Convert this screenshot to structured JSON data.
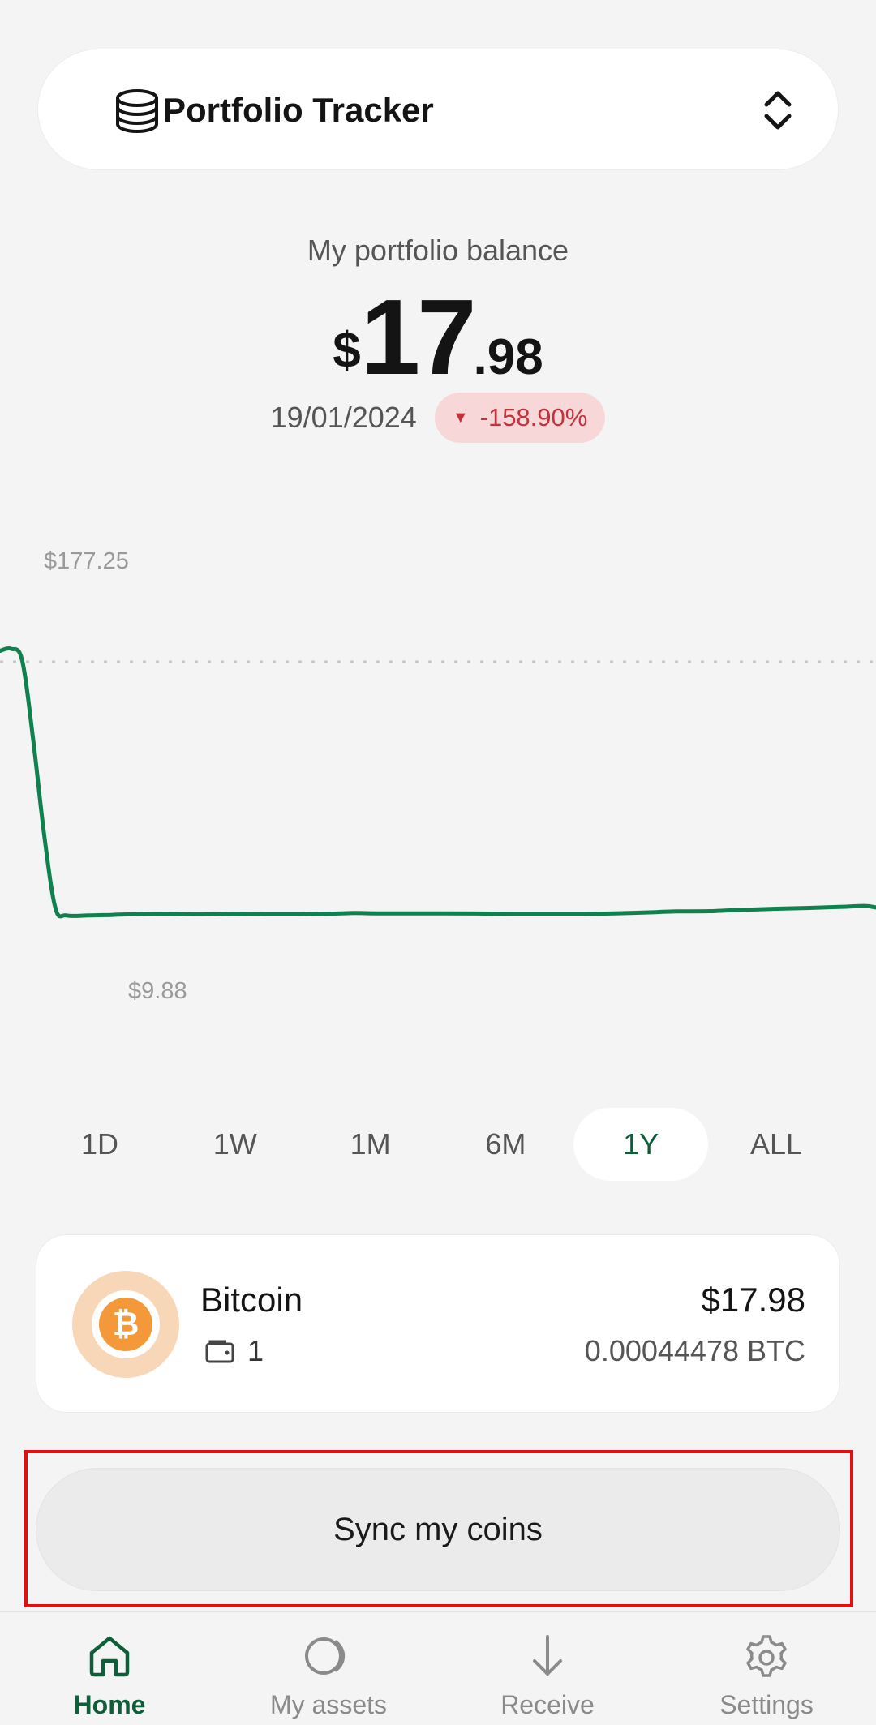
{
  "header": {
    "portfolio_name": "Portfolio Tracker"
  },
  "balance": {
    "label": "My portfolio balance",
    "currency": "$",
    "integer": "17",
    "decimal": ".98",
    "date": "19/01/2024",
    "change": "-158.90%",
    "change_direction": "down"
  },
  "chart_data": {
    "type": "line",
    "max_label": "$177.25",
    "min_label": "$9.88",
    "color": "#11804f",
    "points": [
      [
        0,
        176.0
      ],
      [
        1,
        177.25
      ],
      [
        2,
        170.0
      ],
      [
        3,
        120.0
      ],
      [
        4,
        60.0
      ],
      [
        5,
        15.0
      ],
      [
        6,
        10.5
      ],
      [
        8,
        10.5
      ],
      [
        10,
        10.8
      ],
      [
        12,
        11.3
      ],
      [
        15,
        11.5
      ],
      [
        18,
        11.3
      ],
      [
        21,
        11.5
      ],
      [
        24,
        11.4
      ],
      [
        27,
        11.4
      ],
      [
        30,
        11.6
      ],
      [
        32,
        12.0
      ],
      [
        34,
        11.8
      ],
      [
        37,
        11.8
      ],
      [
        40,
        11.8
      ],
      [
        43,
        11.7
      ],
      [
        46,
        11.5
      ],
      [
        49,
        11.5
      ],
      [
        52,
        11.5
      ],
      [
        55,
        11.7
      ],
      [
        58,
        12.3
      ],
      [
        61,
        13.0
      ],
      [
        64,
        13.2
      ],
      [
        67,
        14.0
      ],
      [
        70,
        14.7
      ],
      [
        73,
        15.2
      ],
      [
        76,
        15.9
      ],
      [
        78,
        16.4
      ],
      [
        79,
        15.5
      ]
    ]
  },
  "ranges": {
    "options": [
      "1D",
      "1W",
      "1M",
      "6M",
      "1Y",
      "ALL"
    ],
    "selected": "1Y"
  },
  "asset": {
    "name": "Bitcoin",
    "symbol_glyph": "₿",
    "wallet_count": "1",
    "value": "$17.98",
    "amount": "0.00044478 BTC"
  },
  "sync_button": {
    "label": "Sync my coins"
  },
  "nav": [
    {
      "label": "Home",
      "icon": "home-icon",
      "active": true
    },
    {
      "label": "My assets",
      "icon": "assets-icon",
      "active": false
    },
    {
      "label": "Receive",
      "icon": "receive-icon",
      "active": false
    },
    {
      "label": "Settings",
      "icon": "settings-icon",
      "active": false
    }
  ],
  "colors": {
    "accent": "#0f5e3a",
    "line": "#11804f",
    "badge_bg": "#f8d7d9",
    "badge_text": "#c2343b",
    "highlight": "#e01010"
  }
}
